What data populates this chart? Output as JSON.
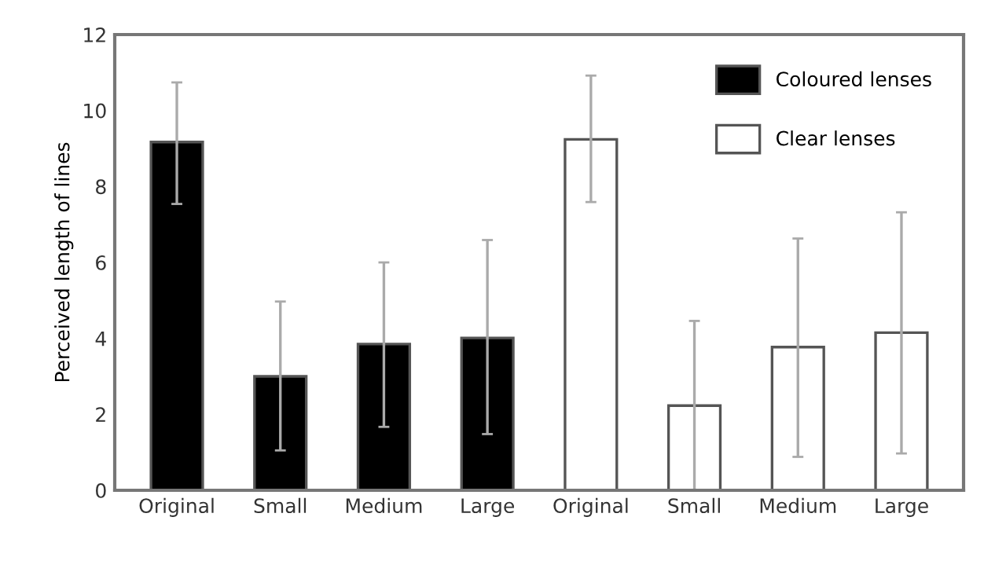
{
  "chart_data": {
    "type": "bar",
    "ylabel": "Perceived length of lines",
    "categories": [
      "Original",
      "Small",
      "Medium",
      "Large",
      "Original",
      "Small",
      "Medium",
      "Large"
    ],
    "series": [
      {
        "name": "Coloured lenses",
        "color": "#000000",
        "values": [
          9.17,
          3.0,
          3.85,
          4.01,
          null,
          null,
          null,
          null
        ],
        "errors": [
          [
            7.54,
            10.74
          ],
          [
            1.05,
            4.97
          ],
          [
            1.67,
            6.0
          ],
          [
            1.48,
            6.59
          ],
          null,
          null,
          null,
          null
        ]
      },
      {
        "name": "Clear lenses",
        "color": "#ffffff",
        "values": [
          null,
          null,
          null,
          null,
          9.24,
          2.23,
          3.77,
          4.15
        ],
        "errors": [
          null,
          null,
          null,
          null,
          [
            7.59,
            10.92
          ],
          [
            0,
            4.46
          ],
          [
            0.88,
            6.63
          ],
          [
            0.97,
            7.32
          ]
        ]
      }
    ],
    "ylim": [
      0,
      12
    ],
    "yticks": [
      0,
      2,
      4,
      6,
      8,
      10,
      12
    ],
    "grid": false,
    "legend": "top right"
  }
}
